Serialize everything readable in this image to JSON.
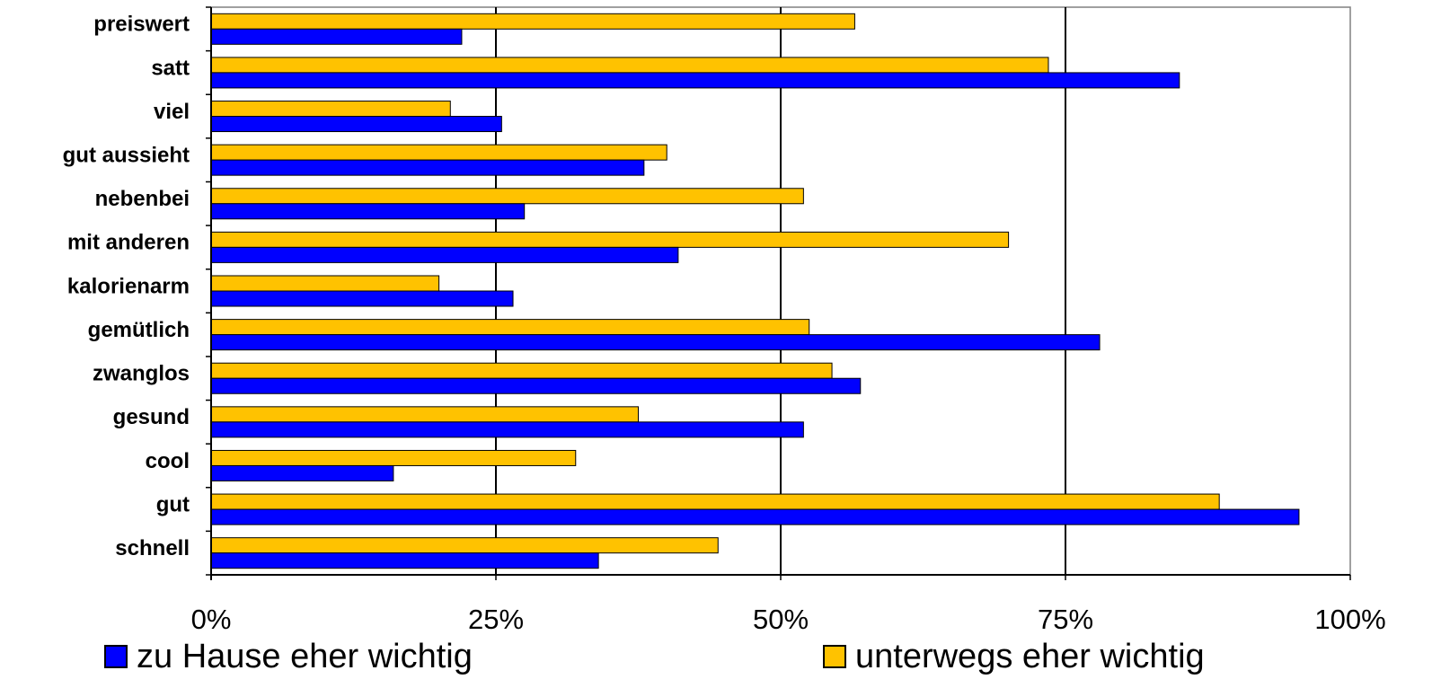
{
  "chart_data": {
    "type": "bar",
    "orientation": "horizontal",
    "categories": [
      "preiswert",
      "satt",
      "viel",
      "gut aussieht",
      "nebenbei",
      "mit anderen",
      "kalorienarm",
      "gemütlich",
      "zwanglos",
      "gesund",
      "cool",
      "gut",
      "schnell"
    ],
    "series": [
      {
        "name": "unterwegs eher wichtig",
        "color": "#FFC200",
        "values": [
          56.5,
          73.5,
          21,
          40,
          52,
          70,
          20,
          52.5,
          54.5,
          37.5,
          32,
          88.5,
          44.5
        ]
      },
      {
        "name": "zu Hause eher wichtig",
        "color": "#0000FF",
        "values": [
          22,
          85,
          25.5,
          38,
          27.5,
          41,
          26.5,
          78,
          57,
          52,
          16,
          95.5,
          34
        ]
      }
    ],
    "xlim": [
      0,
      100
    ],
    "x_ticks": [
      "0%",
      "25%",
      "50%",
      "75%",
      "100%"
    ],
    "grid": "vertical",
    "legend_position": "bottom"
  },
  "legend": {
    "home_label": "zu Hause eher wichtig",
    "away_label": "unterwegs eher wichtig"
  }
}
